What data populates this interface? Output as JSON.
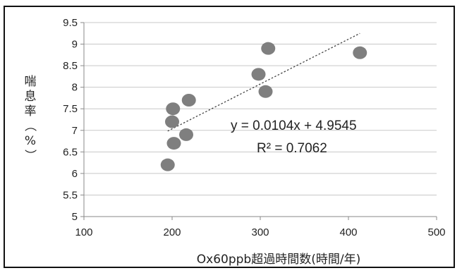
{
  "chart_data": {
    "type": "scatter",
    "title": "",
    "xlabel": "Ox60ppb超過時間数(時間/年)",
    "ylabel": "喘息率（%）",
    "ylabel_chars": [
      "喘",
      "息",
      "率",
      "（",
      "%",
      "）"
    ],
    "xlim": [
      100,
      500
    ],
    "ylim": [
      5,
      9.5
    ],
    "x_ticks": [
      100,
      200,
      300,
      400,
      500
    ],
    "y_ticks": [
      5,
      5.5,
      6,
      6.5,
      7,
      7.5,
      8,
      8.5,
      9,
      9.5
    ],
    "grid": "horizontal",
    "points": [
      {
        "x": 195,
        "y": 6.2
      },
      {
        "x": 202,
        "y": 6.7
      },
      {
        "x": 200,
        "y": 7.2
      },
      {
        "x": 201,
        "y": 7.5
      },
      {
        "x": 216,
        "y": 6.9
      },
      {
        "x": 219,
        "y": 7.7
      },
      {
        "x": 298,
        "y": 8.3
      },
      {
        "x": 306,
        "y": 7.9
      },
      {
        "x": 309,
        "y": 8.9
      },
      {
        "x": 413,
        "y": 8.8
      }
    ],
    "point_color": "#7f7f7f",
    "trendline": {
      "slope": 0.0104,
      "intercept": 4.9545,
      "x_range": [
        195,
        413
      ],
      "equation": "y = 0.0104x + 4.9545",
      "r_squared": "R² = 0.7062"
    }
  }
}
